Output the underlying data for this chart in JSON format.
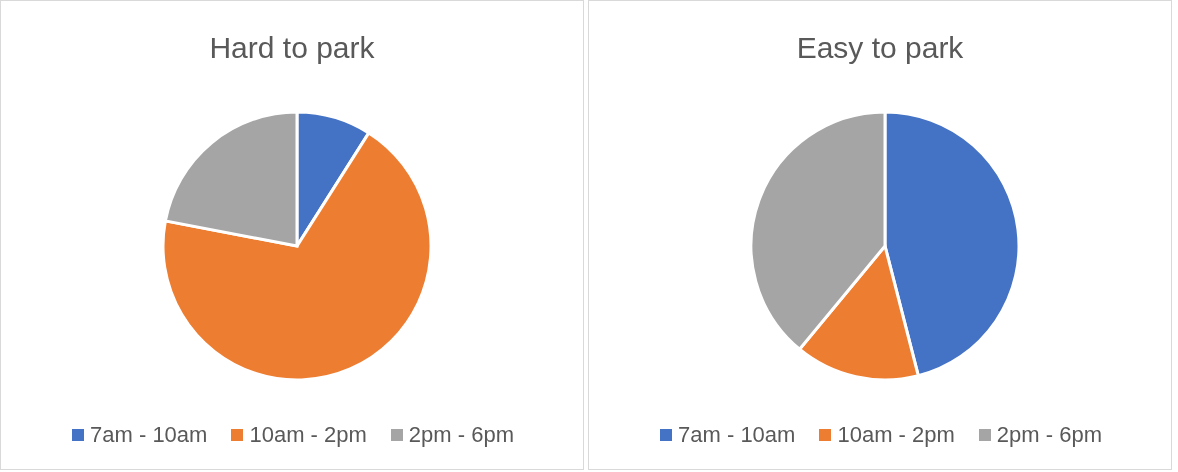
{
  "chart_data": [
    {
      "type": "pie",
      "title": "Hard to park",
      "categories": [
        "7am - 10am",
        "10am - 2pm",
        "2pm - 6pm"
      ],
      "values": [
        9,
        69,
        22
      ],
      "colors": [
        "#4472c4",
        "#ed7d31",
        "#a5a5a5"
      ],
      "legend": "bottom"
    },
    {
      "type": "pie",
      "title": "Easy to park",
      "categories": [
        "7am - 10am",
        "10am - 2pm",
        "2pm - 6pm"
      ],
      "values": [
        46,
        15,
        39
      ],
      "colors": [
        "#4472c4",
        "#ed7d31",
        "#a5a5a5"
      ],
      "legend": "bottom"
    }
  ]
}
